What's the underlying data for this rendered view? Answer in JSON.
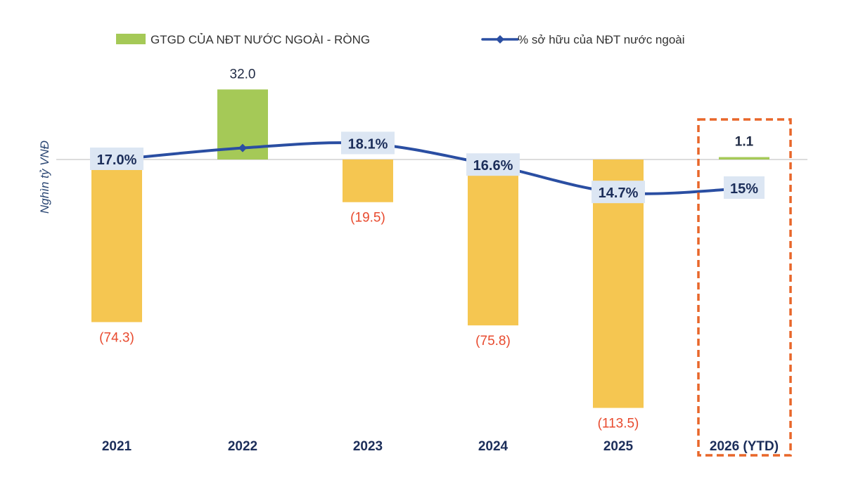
{
  "chart_data": {
    "type": "bar+line",
    "categories": [
      "2021",
      "2022",
      "2023",
      "2024",
      "2025",
      "2026 (YTD)"
    ],
    "series": [
      {
        "name": "GTGD CỦA NĐT NƯỚC NGOÀI - RÒNG",
        "type": "bar",
        "values": [
          -74.3,
          32.0,
          -19.5,
          -75.8,
          -113.5,
          1.1
        ],
        "labels": [
          "(74.3)",
          "32.0",
          "(19.5)",
          "(75.8)",
          "(113.5)",
          "1.1"
        ]
      },
      {
        "name": "% sở hữu của NĐT nước ngoài",
        "type": "line",
        "values": [
          17.0,
          17.8,
          18.1,
          16.6,
          14.7,
          15.0
        ],
        "labels": [
          "17.0%",
          "",
          "18.1%",
          "16.6%",
          "14.7%",
          "15%"
        ]
      }
    ],
    "ylabel": "Nghìn tỷ VNĐ",
    "ylim": [
      -118,
      38
    ],
    "line_ylim": [
      11,
      21
    ],
    "legend_position": "top",
    "highlight_category": "2026 (YTD)",
    "colors": {
      "bar_positive": "#a5c957",
      "bar_negative": "#f5c651",
      "line": "#2a4ea2",
      "negative_label": "#e84a2e",
      "positive_label": "#1f2a44",
      "highlight_box": "#e8672a",
      "pct_label_bg": "#dce6f3",
      "pct_label_text": "#1c2e5a",
      "axis": "#c8c8c8"
    }
  }
}
